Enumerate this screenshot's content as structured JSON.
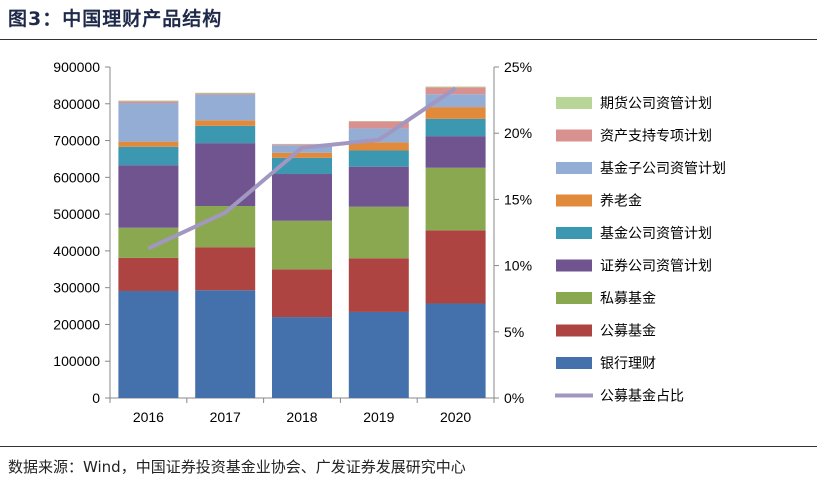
{
  "title": "图3：中国理财产品结构",
  "source": "数据来源：Wind，中国证券投资基金业协会、广发证券发展研究中心",
  "chart_data": {
    "type": "bar",
    "stacked": true,
    "categories": [
      "2016",
      "2017",
      "2018",
      "2019",
      "2020"
    ],
    "ylim": [
      0,
      900000
    ],
    "yticks": [
      "0",
      "100000",
      "200000",
      "300000",
      "400000",
      "500000",
      "600000",
      "700000",
      "800000",
      "900000"
    ],
    "y2lim": [
      0,
      0.25
    ],
    "y2ticks": [
      "0%",
      "5%",
      "10%",
      "15%",
      "20%",
      "25%"
    ],
    "grid": false,
    "legend_position": "right",
    "series": [
      {
        "name": "银行理财",
        "color": "#4470ab",
        "values": [
          291000,
          293000,
          220000,
          234000,
          257000
        ]
      },
      {
        "name": "公募基金",
        "color": "#ad4441",
        "values": [
          90000,
          117000,
          130000,
          146000,
          199000
        ]
      },
      {
        "name": "私募基金",
        "color": "#8aa84f",
        "values": [
          82000,
          112000,
          132000,
          140000,
          170000
        ]
      },
      {
        "name": "证券公司资管计划",
        "color": "#6f548f",
        "values": [
          170000,
          171000,
          127000,
          109000,
          86000
        ]
      },
      {
        "name": "基金公司资管计划",
        "color": "#3b98b0",
        "values": [
          50000,
          47000,
          44000,
          44000,
          47000
        ]
      },
      {
        "name": "养老金",
        "color": "#e18a3c",
        "values": [
          14000,
          15000,
          14000,
          22000,
          32000
        ]
      },
      {
        "name": "基金子公司资管计划",
        "color": "#93add5",
        "values": [
          105000,
          70000,
          20000,
          38000,
          35000
        ]
      },
      {
        "name": "资产支持专项计划",
        "color": "#d9918f",
        "values": [
          5000,
          3000,
          3000,
          19000,
          19000
        ]
      },
      {
        "name": "期货公司资管计划",
        "color": "#b7d698",
        "values": [
          2000,
          2000,
          1000,
          1000,
          2000
        ]
      }
    ],
    "line_series": {
      "name": "公募基金占比",
      "color": "#a297c0",
      "axis": "right",
      "values": [
        0.113,
        0.14,
        0.189,
        0.195,
        0.234
      ]
    },
    "legend_order": [
      "期货公司资管计划",
      "资产支持专项计划",
      "基金子公司资管计划",
      "养老金",
      "基金公司资管计划",
      "证券公司资管计划",
      "私募基金",
      "公募基金",
      "银行理财",
      "公募基金占比"
    ]
  }
}
